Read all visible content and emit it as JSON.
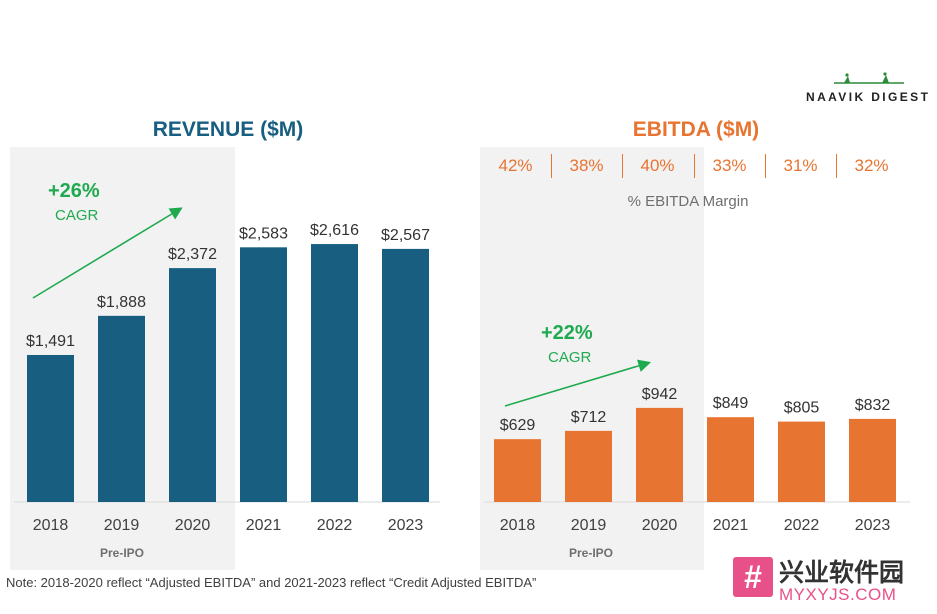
{
  "brand": {
    "logo_text": "NAAVIK DIGEST"
  },
  "colors": {
    "revenue": "#175e80",
    "ebitda": "#e87431",
    "cagr": "#1faa4f",
    "pre_ipo_band": "#f2f2f2"
  },
  "revenue": {
    "title": "REVENUE ($M)",
    "cagr_value": "+26%",
    "cagr_label": "CAGR",
    "pre_ipo_label": "Pre-IPO",
    "value_labels": [
      "$1,491",
      "$1,888",
      "$2,372",
      "$2,583",
      "$2,616",
      "$2,567"
    ]
  },
  "ebitda": {
    "title": "EBITDA ($M)",
    "cagr_value": "+22%",
    "cagr_label": "CAGR",
    "pre_ipo_label": "Pre-IPO",
    "margin_caption": "% EBITDA Margin",
    "margins": [
      "42%",
      "38%",
      "40%",
      "33%",
      "31%",
      "32%"
    ],
    "value_labels": [
      "$629",
      "$712",
      "$942",
      "$849",
      "$805",
      "$832"
    ]
  },
  "note": "Note: 2018-2020 reflect “Adjusted EBITDA” and 2021-2023 reflect “Credit Adjusted EBITDA”",
  "watermark": {
    "glyph": "#",
    "cn": "兴业软件园",
    "en": "MYXYJS.COM"
  },
  "chart_data": [
    {
      "type": "bar",
      "title": "REVENUE ($M)",
      "categories": [
        "2018",
        "2019",
        "2020",
        "2021",
        "2022",
        "2023"
      ],
      "series": [
        {
          "values": [
            1491,
            1888,
            2372,
            2583,
            2616,
            2567
          ]
        }
      ],
      "annotations": [
        "+26% CAGR",
        "Pre-IPO: 2018-2020"
      ],
      "grid": false,
      "color": "#175e80"
    },
    {
      "type": "bar",
      "title": "EBITDA ($M)",
      "categories": [
        "2018",
        "2019",
        "2020",
        "2021",
        "2022",
        "2023"
      ],
      "series": [
        {
          "values": [
            629,
            712,
            942,
            849,
            805,
            832
          ]
        }
      ],
      "ebitda_margin_pct": [
        42,
        38,
        40,
        33,
        31,
        32
      ],
      "annotations": [
        "+22% CAGR",
        "Pre-IPO: 2018-2020",
        "% EBITDA Margin"
      ],
      "grid": false,
      "color": "#e87431"
    }
  ]
}
